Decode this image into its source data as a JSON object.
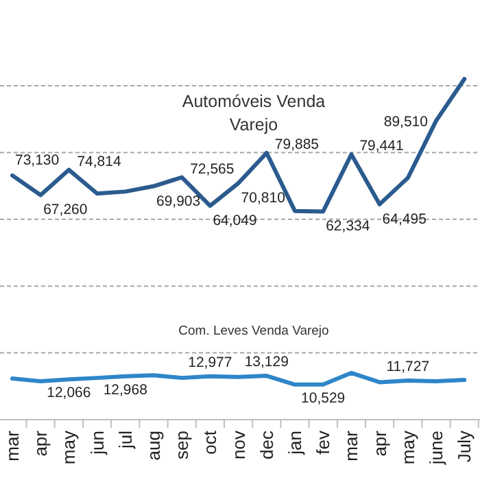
{
  "chart_data": {
    "type": "line",
    "categories": [
      "mar",
      "apr",
      "may",
      "jun",
      "jul",
      "aug",
      "sep",
      "oct",
      "nov",
      "dec",
      "jan",
      "fev",
      "mar",
      "apr",
      "may",
      "june",
      "July"
    ],
    "series": [
      {
        "name": "Automóveis Venda Varejo",
        "color": "#2b5b8e",
        "values": [
          73130,
          67260,
          74814,
          67700,
          68300,
          69903,
          72565,
          64049,
          70810,
          79885,
          62500,
          62334,
          79441,
          64495,
          72400,
          89510,
          102000
        ],
        "value_labels": [
          "73,130",
          "67,260",
          "74,814",
          null,
          null,
          "69,903",
          "72,565",
          "64,049",
          "70,810",
          "79,885",
          null,
          "62,334",
          "79,441",
          "64,495",
          null,
          "89,510",
          null
        ]
      },
      {
        "name": "Com. Leves Venda Varejo",
        "color": "#2e86c9",
        "values": [
          12300,
          11500,
          12066,
          12500,
          12968,
          13300,
          12500,
          12977,
          12800,
          13129,
          10500,
          10529,
          14000,
          11200,
          11727,
          11500,
          11900
        ],
        "value_labels": [
          null,
          null,
          "12,066",
          null,
          "12,968",
          null,
          null,
          "12,977",
          null,
          "13,129",
          null,
          "10,529",
          null,
          null,
          "11,727",
          null,
          null
        ]
      }
    ],
    "yticks": [
      {
        "value": 20000,
        "label": null
      },
      {
        "value": 40000,
        "label": null
      },
      {
        "value": 60000,
        "label": null
      },
      {
        "value": 80000,
        "label": null
      },
      {
        "value": 100000,
        "label": null
      }
    ],
    "grid": "y",
    "tick_labels": "x",
    "marker": "none",
    "line_style": "solid"
  }
}
